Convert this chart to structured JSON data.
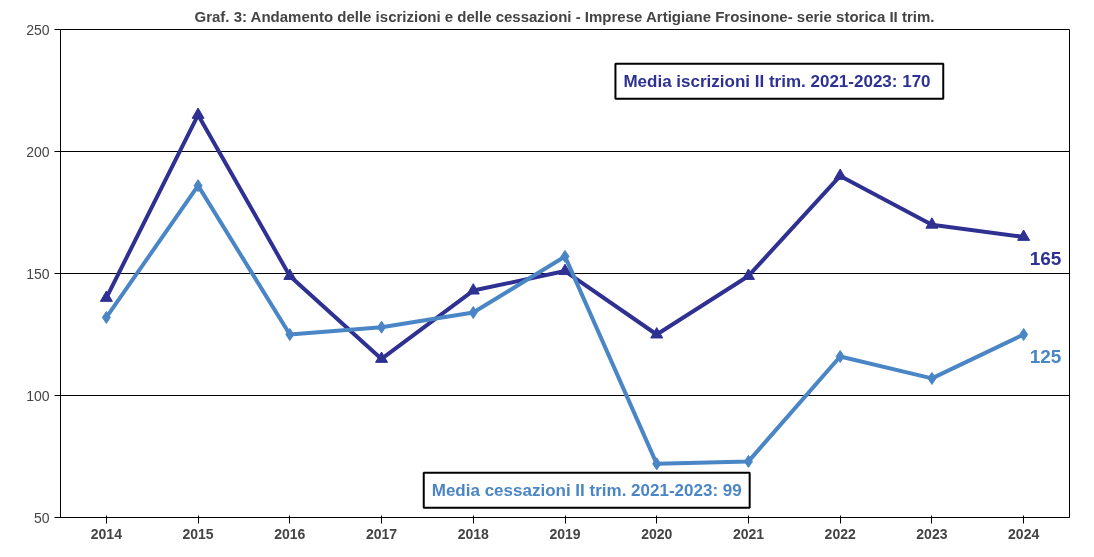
{
  "chart_data": {
    "type": "line",
    "title": "Graf. 3: Andamento delle iscrizioni e delle cessazioni - Imprese Artigiane Frosinone- serie storica II trim.",
    "categories": [
      "2014",
      "2015",
      "2016",
      "2017",
      "2018",
      "2019",
      "2020",
      "2021",
      "2022",
      "2023",
      "2024"
    ],
    "series": [
      {
        "color": "#2e3192",
        "marker": "triangle",
        "values": [
          140,
          215,
          149,
          115,
          143,
          151,
          125,
          149,
          190,
          170,
          165
        ],
        "value_labels": [
          null,
          null,
          null,
          null,
          null,
          null,
          null,
          null,
          null,
          null,
          "165"
        ]
      },
      {
        "color": "#4a86c5",
        "marker": "diamond",
        "values": [
          132,
          186,
          125,
          128,
          134,
          157,
          72,
          73,
          116,
          107,
          125
        ],
        "value_labels": [
          null,
          null,
          null,
          null,
          null,
          null,
          null,
          null,
          null,
          null,
          "125"
        ]
      }
    ],
    "annotations": [
      "Media iscrizioni II trim.  2021-2023: 170",
      "Media cessazioni II trim. 2021-2023: 99"
    ],
    "ylim": [
      50,
      250
    ],
    "yticks": [
      50,
      100,
      150,
      200,
      250
    ],
    "grid": "y",
    "line_style": "solid"
  }
}
